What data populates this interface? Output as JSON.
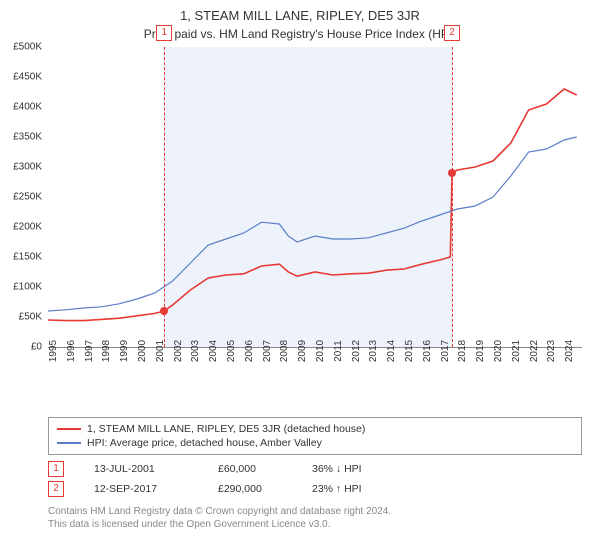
{
  "title": "1, STEAM MILL LANE, RIPLEY, DE5 3JR",
  "subtitle": "Price paid vs. HM Land Registry's House Price Index (HPI)",
  "chart": {
    "type": "line",
    "x_range": [
      1995,
      2025
    ],
    "y_range": [
      0,
      500000
    ],
    "y_ticks": [
      0,
      50000,
      100000,
      150000,
      200000,
      250000,
      300000,
      350000,
      400000,
      450000,
      500000
    ],
    "y_tick_labels": [
      "£0",
      "£50K",
      "£100K",
      "£150K",
      "£200K",
      "£250K",
      "£300K",
      "£350K",
      "£400K",
      "£450K",
      "£500K"
    ],
    "x_ticks": [
      1995,
      1996,
      1997,
      1998,
      1999,
      2000,
      2001,
      2002,
      2003,
      2004,
      2005,
      2006,
      2007,
      2008,
      2009,
      2010,
      2011,
      2012,
      2013,
      2014,
      2015,
      2016,
      2017,
      2018,
      2019,
      2020,
      2021,
      2022,
      2023,
      2024
    ],
    "background_color": "#ffffff",
    "shade_color": "#eef3fb",
    "shade_from": 2001.53,
    "shade_to": 2017.7,
    "series": [
      {
        "name": "property",
        "label": "1, STEAM MILL LANE, RIPLEY, DE5 3JR (detached house)",
        "color": "#e53935",
        "line_width": 1.6,
        "points": [
          [
            1995.0,
            45000
          ],
          [
            1996.0,
            44000
          ],
          [
            1997.0,
            44000
          ],
          [
            1998.0,
            46000
          ],
          [
            1999.0,
            48000
          ],
          [
            2000.0,
            52000
          ],
          [
            2001.0,
            56000
          ],
          [
            2001.53,
            60000
          ],
          [
            2002.0,
            70000
          ],
          [
            2003.0,
            95000
          ],
          [
            2004.0,
            115000
          ],
          [
            2005.0,
            120000
          ],
          [
            2006.0,
            122000
          ],
          [
            2007.0,
            135000
          ],
          [
            2008.0,
            138000
          ],
          [
            2008.5,
            125000
          ],
          [
            2009.0,
            118000
          ],
          [
            2010.0,
            125000
          ],
          [
            2011.0,
            120000
          ],
          [
            2012.0,
            122000
          ],
          [
            2013.0,
            123000
          ],
          [
            2014.0,
            128000
          ],
          [
            2015.0,
            130000
          ],
          [
            2016.0,
            138000
          ],
          [
            2017.0,
            145000
          ],
          [
            2017.6,
            150000
          ],
          [
            2017.7,
            290000
          ],
          [
            2018.0,
            295000
          ],
          [
            2019.0,
            300000
          ],
          [
            2020.0,
            310000
          ],
          [
            2021.0,
            340000
          ],
          [
            2022.0,
            395000
          ],
          [
            2023.0,
            405000
          ],
          [
            2024.0,
            430000
          ],
          [
            2024.7,
            420000
          ]
        ]
      },
      {
        "name": "hpi",
        "label": "HPI: Average price, detached house, Amber Valley",
        "color": "#5b7fc7",
        "line_width": 1.2,
        "points": [
          [
            1995.0,
            60000
          ],
          [
            1996.0,
            62000
          ],
          [
            1997.0,
            65000
          ],
          [
            1998.0,
            67000
          ],
          [
            1999.0,
            72000
          ],
          [
            2000.0,
            80000
          ],
          [
            2001.0,
            90000
          ],
          [
            2002.0,
            110000
          ],
          [
            2003.0,
            140000
          ],
          [
            2004.0,
            170000
          ],
          [
            2005.0,
            180000
          ],
          [
            2006.0,
            190000
          ],
          [
            2007.0,
            208000
          ],
          [
            2008.0,
            205000
          ],
          [
            2008.5,
            185000
          ],
          [
            2009.0,
            175000
          ],
          [
            2010.0,
            185000
          ],
          [
            2011.0,
            180000
          ],
          [
            2012.0,
            180000
          ],
          [
            2013.0,
            182000
          ],
          [
            2014.0,
            190000
          ],
          [
            2015.0,
            198000
          ],
          [
            2016.0,
            210000
          ],
          [
            2017.0,
            220000
          ],
          [
            2018.0,
            230000
          ],
          [
            2019.0,
            235000
          ],
          [
            2020.0,
            250000
          ],
          [
            2021.0,
            285000
          ],
          [
            2022.0,
            325000
          ],
          [
            2023.0,
            330000
          ],
          [
            2024.0,
            345000
          ],
          [
            2024.7,
            350000
          ]
        ]
      }
    ],
    "markers": [
      {
        "num": "1",
        "x": 2001.53,
        "y": 60000
      },
      {
        "num": "2",
        "x": 2017.7,
        "y": 290000
      }
    ],
    "marker_color": "#e53935",
    "point_fill": "#e53935"
  },
  "sales": [
    {
      "num": "1",
      "date": "13-JUL-2001",
      "price": "£60,000",
      "delta": "36% ↓ HPI"
    },
    {
      "num": "2",
      "date": "12-SEP-2017",
      "price": "£290,000",
      "delta": "23% ↑ HPI"
    }
  ],
  "footer_line1": "Contains HM Land Registry data © Crown copyright and database right 2024.",
  "footer_line2": "This data is licensed under the Open Government Licence v3.0."
}
